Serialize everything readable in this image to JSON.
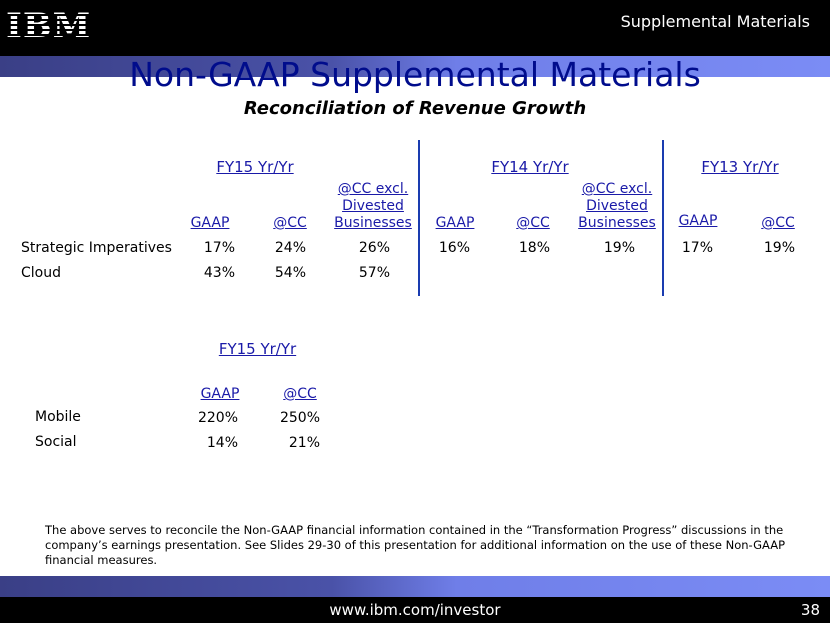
{
  "header": {
    "logo": "IBM",
    "section": "Supplemental Materials"
  },
  "title": "Non-GAAP Supplemental Materials",
  "subtitle": "Reconciliation of Revenue Growth",
  "table1": {
    "groups": [
      "FY15 Yr/Yr",
      "FY14 Yr/Yr",
      "FY13 Yr/Yr"
    ],
    "columns": [
      "GAAP",
      "@CC",
      "@CC excl. Divested Businesses",
      "GAAP",
      "@CC",
      "@CC excl. Divested Businesses",
      "GAAP",
      "@CC"
    ],
    "rows": [
      {
        "label": "Strategic Imperatives",
        "values": [
          "17%",
          "24%",
          "26%",
          "16%",
          "18%",
          "19%",
          "17%",
          "19%"
        ]
      },
      {
        "label": "Cloud",
        "values": [
          "43%",
          "54%",
          "57%"
        ]
      }
    ]
  },
  "table2": {
    "group": "FY15 Yr/Yr",
    "columns": [
      "GAAP",
      "@CC"
    ],
    "rows": [
      {
        "label": "Mobile",
        "values": [
          "220%",
          "250%"
        ]
      },
      {
        "label": "Social",
        "values": [
          "14%",
          "21%"
        ]
      }
    ]
  },
  "note": "The above serves to reconcile the Non-GAAP financial information contained in the “Transformation Progress” discussions in the company’s earnings presentation. See Slides 29-30 of this presentation for additional information on the use of these Non-GAAP financial measures.",
  "footer": {
    "url": "www.ibm.com/investor",
    "page": "38"
  }
}
